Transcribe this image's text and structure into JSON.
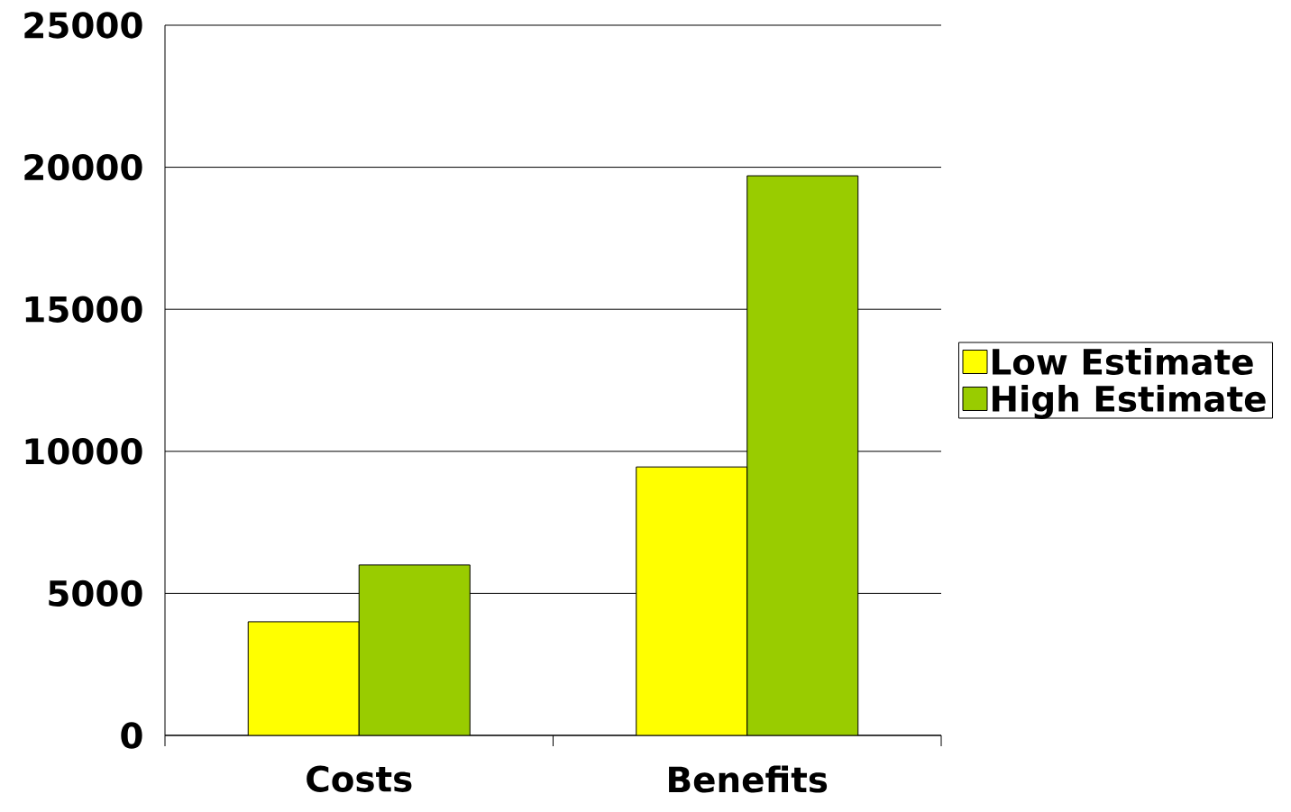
{
  "chart_data": {
    "type": "bar",
    "categories": [
      "Costs",
      "Benefits"
    ],
    "series": [
      {
        "name": "Low Estimate",
        "color": "#ffff00",
        "values": [
          4000,
          9450
        ]
      },
      {
        "name": "High Estimate",
        "color": "#99cc00",
        "values": [
          6000,
          19700
        ]
      }
    ],
    "ylim": [
      0,
      25000
    ],
    "yticks": [
      0,
      5000,
      10000,
      15000,
      20000,
      25000
    ],
    "grid": "y",
    "legend": "right"
  }
}
